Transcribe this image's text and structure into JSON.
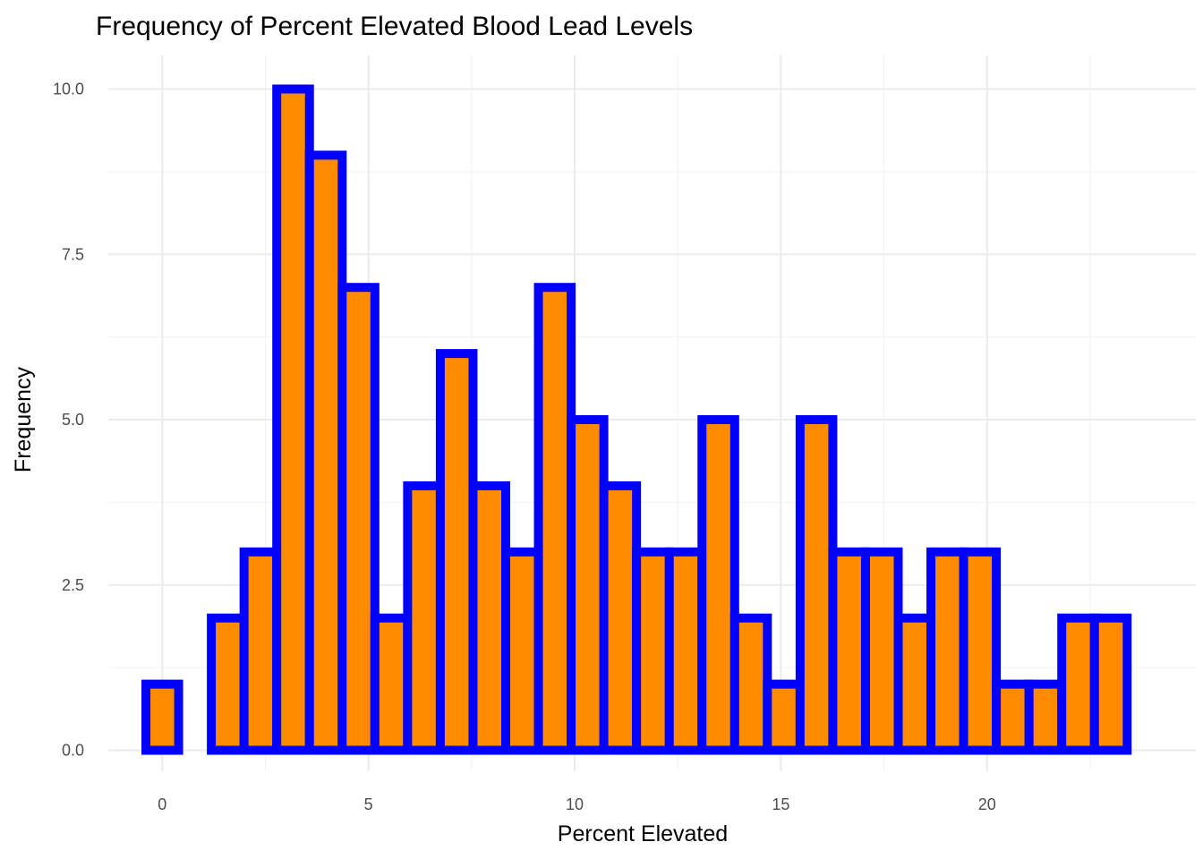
{
  "chart_data": {
    "type": "bar",
    "title": "Frequency of Percent Elevated Blood Lead Levels",
    "xlabel": "Percent Elevated",
    "ylabel": "Frequency",
    "bin_width": 0.7931,
    "bin_centers": [
      0.0,
      0.7931,
      1.5862,
      2.3793,
      3.1724,
      3.9655,
      4.7586,
      5.5517,
      6.3448,
      7.1379,
      7.931,
      8.7241,
      9.5172,
      10.3103,
      11.1034,
      11.8966,
      12.6897,
      13.4828,
      14.2759,
      15.069,
      15.8621,
      16.6552,
      17.4483,
      18.2414,
      19.0345,
      19.8276,
      20.6207,
      21.4138,
      22.2069,
      23.0
    ],
    "values": [
      1,
      0,
      2,
      3,
      10,
      9,
      7,
      2,
      4,
      6,
      4,
      3,
      7,
      5,
      4,
      3,
      3,
      5,
      2,
      1,
      5,
      3,
      3,
      2,
      3,
      3,
      1,
      1,
      2,
      2
    ],
    "xlim": [
      -0.3966,
      23.3966
    ],
    "ylim": [
      0,
      10
    ],
    "x_ticks": [
      "0",
      "5",
      "10",
      "15",
      "20"
    ],
    "y_ticks": [
      "0.0",
      "2.5",
      "5.0",
      "7.5",
      "10.0"
    ],
    "fill_color": "#FF8C00",
    "border_color": "#0000FF",
    "grid": true,
    "legend": "none"
  }
}
